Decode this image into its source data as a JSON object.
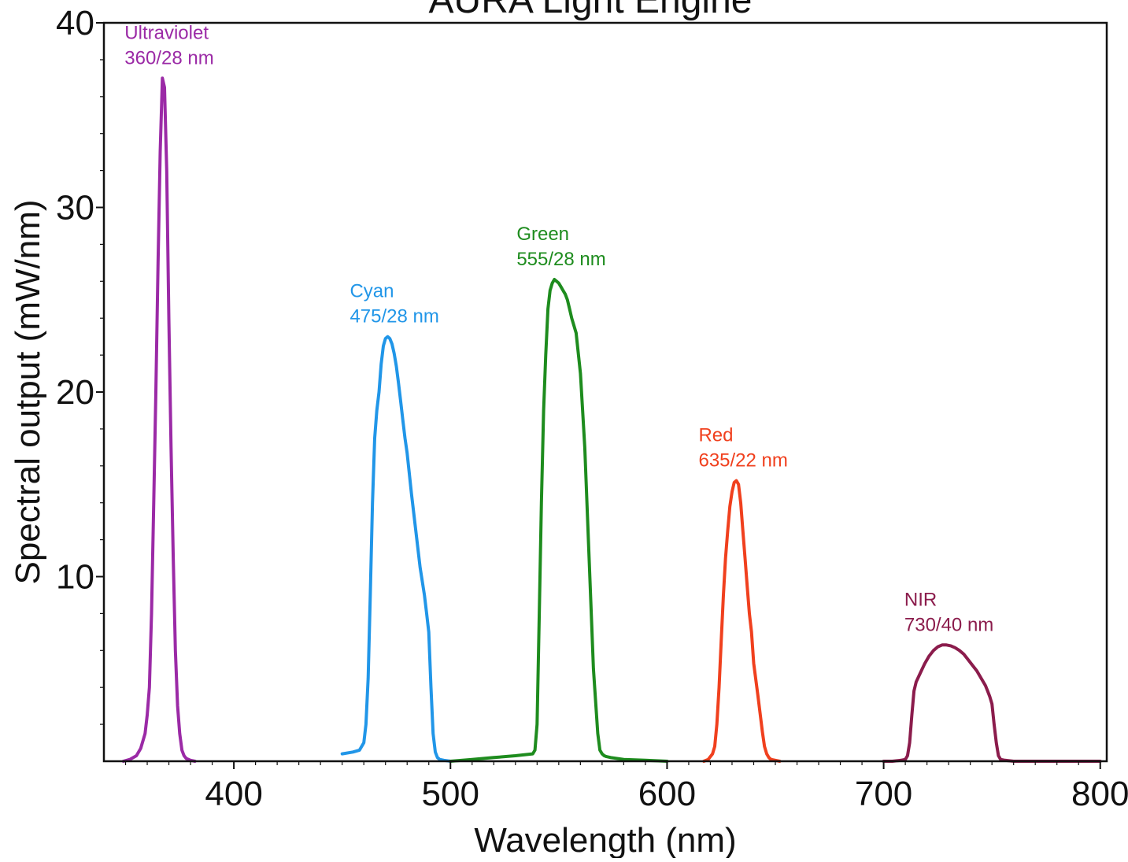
{
  "chart_data": {
    "type": "line",
    "title": "AURA Light Engine",
    "xlabel": "Wavelength (nm)",
    "ylabel": "Spectral output (mW/nm)",
    "xlim": [
      340,
      803
    ],
    "ylim": [
      0,
      40
    ],
    "x_ticks": [
      400,
      500,
      600,
      700,
      800
    ],
    "y_ticks": [
      10,
      20,
      30,
      40
    ],
    "grid": false,
    "legend": "none",
    "series": [
      {
        "name": "Ultraviolet",
        "annotation": "360/28 nm",
        "color": "#9b2aa6",
        "x": [
          349,
          352,
          355,
          357,
          359,
          360,
          361,
          362,
          363,
          364,
          365,
          366,
          367,
          368,
          369,
          370,
          371,
          372,
          373,
          374,
          375,
          376,
          377,
          378,
          380,
          382
        ],
        "y": [
          0.0,
          0.1,
          0.3,
          0.7,
          1.5,
          2.5,
          4.0,
          8.0,
          14.0,
          20.0,
          27.0,
          33.0,
          37.0,
          36.5,
          32.0,
          24.0,
          17.0,
          11.0,
          6.0,
          3.0,
          1.5,
          0.6,
          0.3,
          0.15,
          0.05,
          0.0
        ]
      },
      {
        "name": "Cyan",
        "annotation": "475/28 nm",
        "color": "#2196e8",
        "x": [
          450,
          455,
          458,
          460,
          461,
          462,
          463,
          464,
          465,
          466,
          467,
          468,
          469,
          470,
          471,
          472,
          473,
          474,
          475,
          476,
          477,
          478,
          479,
          480,
          482,
          484,
          486,
          488,
          489,
          490,
          491,
          492,
          493,
          494,
          495,
          497,
          500
        ],
        "y": [
          0.4,
          0.5,
          0.6,
          1.0,
          2.0,
          4.5,
          9.0,
          14.0,
          17.5,
          19.0,
          20.0,
          21.5,
          22.5,
          22.9,
          23.0,
          22.9,
          22.6,
          22.1,
          21.4,
          20.5,
          19.5,
          18.5,
          17.5,
          16.7,
          14.5,
          12.5,
          10.5,
          9.0,
          8.0,
          7.0,
          4.0,
          1.5,
          0.5,
          0.2,
          0.1,
          0.05,
          0.0
        ]
      },
      {
        "name": "Green",
        "annotation": "555/28 nm",
        "color": "#1e8c1e",
        "x": [
          500,
          510,
          520,
          530,
          538,
          539,
          540,
          541,
          542,
          543,
          544,
          545,
          546,
          547,
          548,
          549,
          550,
          551,
          552,
          553,
          554,
          555,
          556,
          557,
          558,
          560,
          562,
          564,
          566,
          568,
          569,
          570,
          571,
          572,
          574,
          580,
          590,
          600
        ],
        "y": [
          0.0,
          0.1,
          0.2,
          0.3,
          0.4,
          0.6,
          2.0,
          8.0,
          14.0,
          19.0,
          22.0,
          24.5,
          25.5,
          25.9,
          26.1,
          26.0,
          25.9,
          25.7,
          25.5,
          25.3,
          25.0,
          24.5,
          24.0,
          23.6,
          23.2,
          21.0,
          17.0,
          11.0,
          5.0,
          1.5,
          0.6,
          0.4,
          0.3,
          0.25,
          0.2,
          0.1,
          0.05,
          0.0
        ]
      },
      {
        "name": "Red",
        "annotation": "635/22 nm",
        "color": "#f0401e",
        "x": [
          617,
          619,
          621,
          622,
          623,
          624,
          625,
          626,
          627,
          628,
          629,
          630,
          631,
          632,
          633,
          634,
          635,
          636,
          637,
          638,
          639,
          640,
          642,
          644,
          645,
          646,
          647,
          648,
          650,
          652
        ],
        "y": [
          0.0,
          0.1,
          0.4,
          0.8,
          2.0,
          4.0,
          6.5,
          9.0,
          11.0,
          12.5,
          13.8,
          14.6,
          15.1,
          15.2,
          15.0,
          14.0,
          12.5,
          11.0,
          9.5,
          8.0,
          7.0,
          5.3,
          3.5,
          1.6,
          0.8,
          0.4,
          0.2,
          0.1,
          0.05,
          0.0
        ]
      },
      {
        "name": "NIR",
        "annotation": "730/40 nm",
        "color": "#8b1c4c",
        "x": [
          700,
          704,
          708,
          710,
          711,
          712,
          713,
          714,
          715,
          717,
          719,
          721,
          723,
          725,
          727,
          729,
          731,
          733,
          735,
          737,
          739,
          741,
          743,
          745,
          747,
          748,
          749,
          750,
          751,
          752,
          753,
          754,
          756,
          760,
          780,
          800
        ],
        "y": [
          0.0,
          0.0,
          0.05,
          0.1,
          0.3,
          1.0,
          2.5,
          3.8,
          4.3,
          4.8,
          5.3,
          5.7,
          6.0,
          6.2,
          6.3,
          6.3,
          6.25,
          6.15,
          6.0,
          5.8,
          5.5,
          5.2,
          4.9,
          4.5,
          4.1,
          3.8,
          3.5,
          3.1,
          2.0,
          1.0,
          0.3,
          0.1,
          0.05,
          0.0,
          0.0,
          0.0
        ]
      }
    ]
  }
}
